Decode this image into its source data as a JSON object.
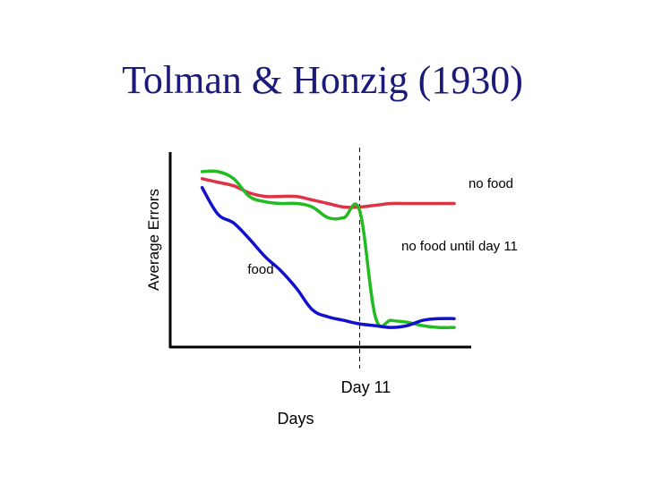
{
  "title": "Tolman & Honzig (1930)",
  "chart_data": {
    "type": "line",
    "xlabel": "Days",
    "ylabel": "Average Errors",
    "xlim": [
      0,
      17
    ],
    "ylim": [
      0,
      10
    ],
    "grid": false,
    "reference_line": {
      "x": 11,
      "label": "Day 11"
    },
    "series": [
      {
        "name": "no food",
        "color": "#dd3344",
        "x": [
          1,
          2,
          3,
          4,
          5,
          6,
          7,
          8,
          9,
          10,
          11,
          12,
          13,
          14,
          15,
          16,
          17
        ],
        "y": [
          9.0,
          8.8,
          8.6,
          8.2,
          8.0,
          8.0,
          8.0,
          7.8,
          7.6,
          7.4,
          7.4,
          7.5,
          7.6,
          7.6,
          7.6,
          7.6,
          7.6
        ]
      },
      {
        "name": "no food until day 11",
        "color": "#22bb22",
        "x": [
          1,
          2,
          3,
          4,
          5,
          6,
          7,
          8,
          9,
          10,
          11,
          12,
          13,
          14,
          15,
          16,
          17
        ],
        "y": [
          9.4,
          9.4,
          9.0,
          8.0,
          7.7,
          7.6,
          7.6,
          7.4,
          6.8,
          6.8,
          7.2,
          1.2,
          1.0,
          0.9,
          0.7,
          0.6,
          0.6
        ]
      },
      {
        "name": "food",
        "color": "#1111cc",
        "x": [
          1,
          2,
          3,
          4,
          5,
          6,
          7,
          8,
          9,
          10,
          11,
          12,
          13,
          14,
          15,
          16,
          17
        ],
        "y": [
          8.5,
          7.0,
          6.5,
          5.6,
          4.6,
          3.8,
          2.8,
          1.6,
          1.2,
          1.0,
          0.8,
          0.7,
          0.6,
          0.7,
          1.0,
          1.1,
          1.1
        ]
      }
    ],
    "annotations": [
      {
        "text": "no food",
        "series": "no food"
      },
      {
        "text": "no food until day 11",
        "series": "no food until day 11"
      },
      {
        "text": "food",
        "series": "food"
      }
    ]
  }
}
